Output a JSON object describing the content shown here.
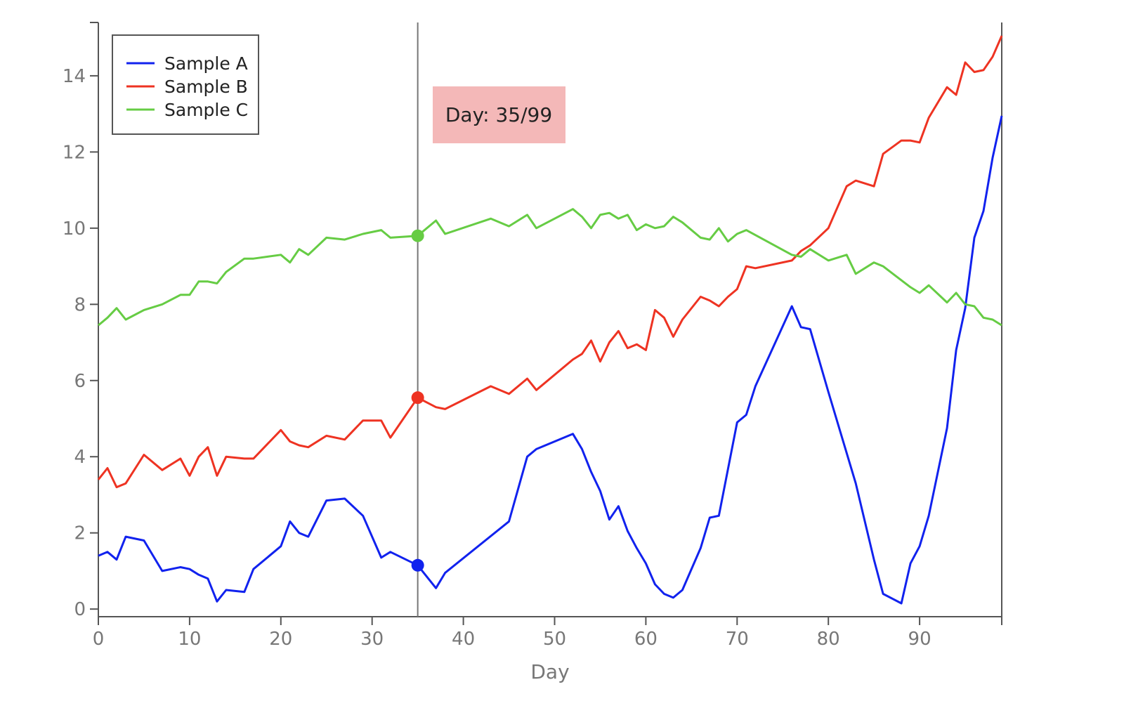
{
  "chart_data": {
    "type": "line",
    "xlabel": "Day",
    "ylabel": "",
    "xlim": [
      0,
      99
    ],
    "ylim": [
      -0.2,
      15.4
    ],
    "xticks": [
      0,
      10,
      20,
      30,
      40,
      50,
      60,
      70,
      80,
      90
    ],
    "yticks": [
      0,
      2,
      4,
      6,
      8,
      10,
      12,
      14
    ],
    "grid": false,
    "legend_position": "top-left",
    "cursor": {
      "day": 35,
      "label": "Day: 35/99"
    },
    "series": [
      {
        "name": "Sample A",
        "color": "#1122ee",
        "points": [
          [
            0,
            1.4
          ],
          [
            1,
            1.5
          ],
          [
            2,
            1.3
          ],
          [
            3,
            1.9
          ],
          [
            5,
            1.8
          ],
          [
            7,
            1.0
          ],
          [
            9,
            1.1
          ],
          [
            10,
            1.05
          ],
          [
            11,
            0.9
          ],
          [
            12,
            0.8
          ],
          [
            13,
            0.2
          ],
          [
            14,
            0.5
          ],
          [
            16,
            0.45
          ],
          [
            17,
            1.05
          ],
          [
            20,
            1.65
          ],
          [
            21,
            2.3
          ],
          [
            22,
            2.0
          ],
          [
            23,
            1.9
          ],
          [
            25,
            2.85
          ],
          [
            27,
            2.9
          ],
          [
            29,
            2.45
          ],
          [
            31,
            1.35
          ],
          [
            32,
            1.5
          ],
          [
            35,
            1.15
          ],
          [
            37,
            0.55
          ],
          [
            38,
            0.95
          ],
          [
            45,
            2.3
          ],
          [
            47,
            4.0
          ],
          [
            48,
            4.2
          ],
          [
            52,
            4.6
          ],
          [
            53,
            4.2
          ],
          [
            54,
            3.6
          ],
          [
            55,
            3.1
          ],
          [
            56,
            2.35
          ],
          [
            57,
            2.7
          ],
          [
            58,
            2.05
          ],
          [
            59,
            1.6
          ],
          [
            60,
            1.2
          ],
          [
            61,
            0.65
          ],
          [
            62,
            0.4
          ],
          [
            63,
            0.3
          ],
          [
            64,
            0.5
          ],
          [
            66,
            1.6
          ],
          [
            67,
            2.4
          ],
          [
            68,
            2.45
          ],
          [
            70,
            4.9
          ],
          [
            71,
            5.1
          ],
          [
            72,
            5.85
          ],
          [
            76,
            7.95
          ],
          [
            77,
            7.4
          ],
          [
            78,
            7.35
          ],
          [
            80,
            5.7
          ],
          [
            83,
            3.3
          ],
          [
            85,
            1.3
          ],
          [
            86,
            0.4
          ],
          [
            88,
            0.15
          ],
          [
            89,
            1.2
          ],
          [
            90,
            1.65
          ],
          [
            91,
            2.45
          ],
          [
            93,
            4.75
          ],
          [
            94,
            6.8
          ],
          [
            95,
            7.9
          ],
          [
            96,
            9.75
          ],
          [
            97,
            10.45
          ],
          [
            98,
            11.85
          ],
          [
            99,
            12.95
          ]
        ]
      },
      {
        "name": "Sample B",
        "color": "#ee3322",
        "points": [
          [
            0,
            3.4
          ],
          [
            1,
            3.7
          ],
          [
            2,
            3.2
          ],
          [
            3,
            3.3
          ],
          [
            5,
            4.05
          ],
          [
            7,
            3.65
          ],
          [
            9,
            3.95
          ],
          [
            10,
            3.5
          ],
          [
            11,
            4.0
          ],
          [
            12,
            4.25
          ],
          [
            13,
            3.5
          ],
          [
            14,
            4.0
          ],
          [
            16,
            3.95
          ],
          [
            17,
            3.95
          ],
          [
            20,
            4.7
          ],
          [
            21,
            4.4
          ],
          [
            22,
            4.3
          ],
          [
            23,
            4.25
          ],
          [
            25,
            4.55
          ],
          [
            27,
            4.45
          ],
          [
            29,
            4.95
          ],
          [
            31,
            4.95
          ],
          [
            32,
            4.5
          ],
          [
            35,
            5.55
          ],
          [
            37,
            5.3
          ],
          [
            38,
            5.25
          ],
          [
            43,
            5.85
          ],
          [
            45,
            5.65
          ],
          [
            47,
            6.05
          ],
          [
            48,
            5.75
          ],
          [
            52,
            6.55
          ],
          [
            53,
            6.7
          ],
          [
            54,
            7.05
          ],
          [
            55,
            6.5
          ],
          [
            56,
            7.0
          ],
          [
            57,
            7.3
          ],
          [
            58,
            6.85
          ],
          [
            59,
            6.95
          ],
          [
            60,
            6.8
          ],
          [
            61,
            7.85
          ],
          [
            62,
            7.65
          ],
          [
            63,
            7.15
          ],
          [
            64,
            7.6
          ],
          [
            66,
            8.2
          ],
          [
            67,
            8.1
          ],
          [
            68,
            7.95
          ],
          [
            69,
            8.2
          ],
          [
            70,
            8.4
          ],
          [
            71,
            9.0
          ],
          [
            72,
            8.95
          ],
          [
            76,
            9.15
          ],
          [
            77,
            9.4
          ],
          [
            78,
            9.55
          ],
          [
            80,
            10.0
          ],
          [
            82,
            11.1
          ],
          [
            83,
            11.25
          ],
          [
            85,
            11.1
          ],
          [
            86,
            11.95
          ],
          [
            88,
            12.3
          ],
          [
            89,
            12.3
          ],
          [
            90,
            12.25
          ],
          [
            91,
            12.9
          ],
          [
            93,
            13.7
          ],
          [
            94,
            13.5
          ],
          [
            95,
            14.35
          ],
          [
            96,
            14.1
          ],
          [
            97,
            14.15
          ],
          [
            98,
            14.5
          ],
          [
            99,
            15.05
          ]
        ]
      },
      {
        "name": "Sample C",
        "color": "#66cc44",
        "points": [
          [
            0,
            7.45
          ],
          [
            1,
            7.65
          ],
          [
            2,
            7.9
          ],
          [
            3,
            7.6
          ],
          [
            5,
            7.85
          ],
          [
            7,
            8.0
          ],
          [
            9,
            8.25
          ],
          [
            10,
            8.25
          ],
          [
            11,
            8.6
          ],
          [
            12,
            8.6
          ],
          [
            13,
            8.55
          ],
          [
            14,
            8.85
          ],
          [
            16,
            9.2
          ],
          [
            17,
            9.2
          ],
          [
            20,
            9.3
          ],
          [
            21,
            9.1
          ],
          [
            22,
            9.45
          ],
          [
            23,
            9.3
          ],
          [
            25,
            9.75
          ],
          [
            27,
            9.7
          ],
          [
            29,
            9.85
          ],
          [
            31,
            9.95
          ],
          [
            32,
            9.75
          ],
          [
            35,
            9.8
          ],
          [
            37,
            10.2
          ],
          [
            38,
            9.85
          ],
          [
            43,
            10.25
          ],
          [
            45,
            10.05
          ],
          [
            47,
            10.35
          ],
          [
            48,
            10.0
          ],
          [
            52,
            10.5
          ],
          [
            53,
            10.3
          ],
          [
            54,
            10.0
          ],
          [
            55,
            10.35
          ],
          [
            56,
            10.4
          ],
          [
            57,
            10.25
          ],
          [
            58,
            10.35
          ],
          [
            59,
            9.95
          ],
          [
            60,
            10.1
          ],
          [
            61,
            10.0
          ],
          [
            62,
            10.05
          ],
          [
            63,
            10.3
          ],
          [
            64,
            10.15
          ],
          [
            66,
            9.75
          ],
          [
            67,
            9.7
          ],
          [
            68,
            10.0
          ],
          [
            69,
            9.65
          ],
          [
            70,
            9.85
          ],
          [
            71,
            9.95
          ],
          [
            76,
            9.3
          ],
          [
            77,
            9.25
          ],
          [
            78,
            9.45
          ],
          [
            80,
            9.15
          ],
          [
            82,
            9.3
          ],
          [
            83,
            8.8
          ],
          [
            85,
            9.1
          ],
          [
            86,
            9.0
          ],
          [
            89,
            8.45
          ],
          [
            90,
            8.3
          ],
          [
            91,
            8.5
          ],
          [
            93,
            8.05
          ],
          [
            94,
            8.3
          ],
          [
            95,
            8.0
          ],
          [
            96,
            7.95
          ],
          [
            97,
            7.65
          ],
          [
            98,
            7.6
          ],
          [
            99,
            7.45
          ]
        ]
      }
    ]
  }
}
